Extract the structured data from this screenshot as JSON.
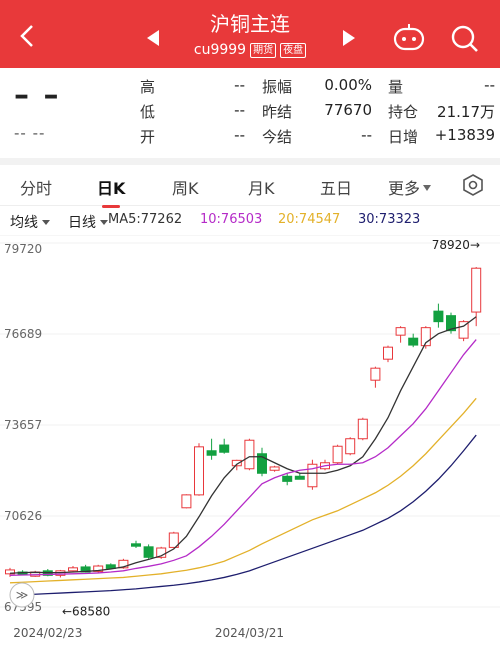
{
  "header": {
    "title": "沪铜主连",
    "code": "cu9999",
    "badges": [
      "期货",
      "夜盘"
    ]
  },
  "quote": {
    "price": "– –",
    "change": "-- --",
    "fields": [
      [
        {
          "label": "高",
          "value": "--"
        },
        {
          "label": "振幅",
          "value": "0.00%"
        },
        {
          "label": "量",
          "value": "--"
        }
      ],
      [
        {
          "label": "低",
          "value": "--"
        },
        {
          "label": "昨结",
          "value": "77670"
        },
        {
          "label": "持仓",
          "value": "21.17万"
        }
      ],
      [
        {
          "label": "开",
          "value": "--"
        },
        {
          "label": "今结",
          "value": "--"
        },
        {
          "label": "日增",
          "value": "+13839"
        }
      ]
    ]
  },
  "tabs": {
    "items": [
      "分时",
      "日K",
      "周K",
      "月K",
      "五日",
      "更多"
    ],
    "selected": 1
  },
  "toolbar": [
    "均线",
    "日线"
  ],
  "chart_data": {
    "type": "candlestick",
    "categories": [
      null,
      null,
      null,
      "2024/02/23",
      null,
      null,
      null,
      null,
      null,
      null,
      null,
      null,
      null,
      null,
      null,
      null,
      null,
      null,
      null,
      "2024/03/21",
      null,
      null,
      null,
      null,
      null,
      null,
      null,
      null,
      null,
      null,
      null,
      null,
      null,
      null,
      null,
      null,
      null,
      null
    ],
    "open": [
      68700,
      68760,
      68620,
      68800,
      68650,
      68800,
      68930,
      68780,
      69000,
      68900,
      69700,
      69600,
      69250,
      69580,
      70900,
      71330,
      72800,
      72990,
      72300,
      72200,
      72700,
      72150,
      71950,
      71950,
      71600,
      72200,
      72400,
      72700,
      73200,
      75150,
      75850,
      76650,
      76550,
      76300,
      77450,
      77300,
      76550,
      77420
    ],
    "high": [
      68900,
      68820,
      68800,
      68860,
      68830,
      68960,
      69000,
      69000,
      69050,
      69200,
      69800,
      69680,
      69600,
      70100,
      71350,
      73050,
      73200,
      73200,
      72500,
      73200,
      72900,
      72300,
      72050,
      72050,
      72500,
      72500,
      73000,
      73250,
      73900,
      75600,
      76300,
      76950,
      76700,
      76950,
      77700,
      77400,
      77150,
      78920
    ],
    "low": [
      68600,
      68650,
      68600,
      68620,
      68580,
      68760,
      68740,
      68740,
      68860,
      68870,
      69560,
      69200,
      69200,
      69550,
      70880,
      71300,
      72500,
      72700,
      72150,
      72150,
      71950,
      72100,
      71650,
      71850,
      71500,
      72150,
      72350,
      72650,
      73150,
      74900,
      75750,
      76400,
      76250,
      76200,
      76900,
      76700,
      76450,
      76950
    ],
    "close": [
      68830,
      68670,
      68760,
      68650,
      68800,
      68900,
      68760,
      68960,
      68880,
      69150,
      69620,
      69250,
      69560,
      70060,
      71330,
      72930,
      72650,
      72750,
      72480,
      73150,
      72050,
      72260,
      71780,
      71850,
      72350,
      72400,
      72950,
      73200,
      73850,
      75550,
      76250,
      76900,
      76320,
      76900,
      77100,
      76800,
      77100,
      78880
    ],
    "up_color": "#e8373b",
    "down_color": "#13a040",
    "ylim": [
      67595,
      79720
    ],
    "yticks": [
      79720,
      76689,
      73657,
      70626,
      67595
    ],
    "grid": true,
    "ma": [
      {
        "name": "MA5",
        "label": "MA5:77262",
        "color": "#333333",
        "values": [
          68720,
          68740,
          68750,
          68740,
          68740,
          68760,
          68780,
          68810,
          68860,
          68930,
          69070,
          69180,
          69300,
          69530,
          69950,
          70600,
          71300,
          71900,
          72350,
          72600,
          72600,
          72400,
          72200,
          72050,
          72050,
          72050,
          72150,
          72300,
          72600,
          73200,
          73900,
          74800,
          75600,
          76400,
          76700,
          76850,
          76950,
          77262
        ]
      },
      {
        "name": "10",
        "label": "10:76503",
        "color": "#b52bc8",
        "values": [
          68650,
          68660,
          68670,
          68680,
          68690,
          68700,
          68710,
          68730,
          68760,
          68800,
          68880,
          68950,
          69030,
          69150,
          69300,
          69600,
          69950,
          70350,
          70800,
          71250,
          71700,
          71900,
          72050,
          72150,
          72200,
          72300,
          72350,
          72350,
          72400,
          72600,
          72900,
          73300,
          73700,
          74200,
          74800,
          75400,
          76000,
          76503
        ]
      },
      {
        "name": "20",
        "label": "20:74547",
        "color": "#e3b12a",
        "values": [
          68400,
          68420,
          68440,
          68460,
          68480,
          68500,
          68520,
          68540,
          68560,
          68580,
          68620,
          68660,
          68700,
          68760,
          68820,
          68900,
          69000,
          69120,
          69300,
          69480,
          69700,
          69900,
          70100,
          70300,
          70500,
          70650,
          70800,
          71000,
          71200,
          71400,
          71650,
          71950,
          72300,
          72700,
          73150,
          73600,
          74050,
          74547
        ]
      },
      {
        "name": "30",
        "label": "30:73323",
        "color": "#1e1e6e",
        "values": [
          67980,
          68000,
          68020,
          68040,
          68060,
          68080,
          68100,
          68120,
          68140,
          68170,
          68200,
          68240,
          68280,
          68320,
          68370,
          68430,
          68500,
          68580,
          68680,
          68800,
          68950,
          69100,
          69250,
          69400,
          69550,
          69700,
          69850,
          70000,
          70150,
          70350,
          70550,
          70800,
          71100,
          71450,
          71850,
          72300,
          72800,
          73323
        ]
      }
    ],
    "annotations": [
      {
        "value": 78920,
        "label": "78920→"
      },
      {
        "value": 68580,
        "label": "←68580"
      }
    ]
  }
}
